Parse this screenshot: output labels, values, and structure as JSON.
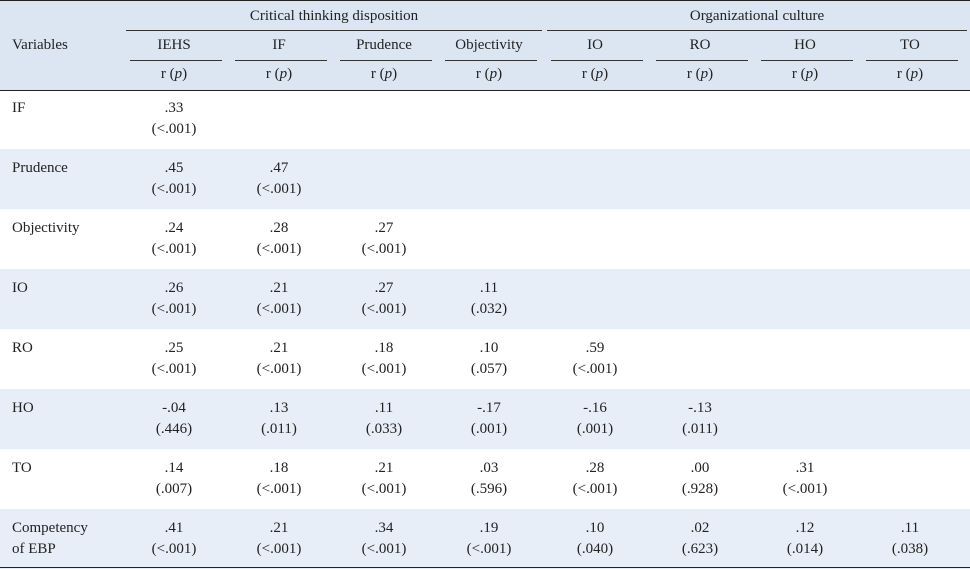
{
  "header": {
    "variables_label": "Variables",
    "group_ct": "Critical thinking disposition",
    "group_oc": "Organizational culture",
    "columns": [
      "IEHS",
      "IF",
      "Prudence",
      "Objectivity",
      "IO",
      "RO",
      "HO",
      "TO"
    ],
    "stat_r": "r (",
    "stat_p": "p",
    "stat_close": ")"
  },
  "rows": [
    {
      "label": "IF",
      "cells": [
        {
          "r": ".33",
          "p": "(<.001)"
        }
      ]
    },
    {
      "label": "Prudence",
      "cells": [
        {
          "r": ".45",
          "p": "(<.001)"
        },
        {
          "r": ".47",
          "p": "(<.001)"
        }
      ]
    },
    {
      "label": "Objectivity",
      "cells": [
        {
          "r": ".24",
          "p": "(<.001)"
        },
        {
          "r": ".28",
          "p": "(<.001)"
        },
        {
          "r": ".27",
          "p": "(<.001)"
        }
      ]
    },
    {
      "label": "IO",
      "cells": [
        {
          "r": ".26",
          "p": "(<.001)"
        },
        {
          "r": ".21",
          "p": "(<.001)"
        },
        {
          "r": ".27",
          "p": "(<.001)"
        },
        {
          "r": ".11",
          "p": "(.032)"
        }
      ]
    },
    {
      "label": "RO",
      "cells": [
        {
          "r": ".25",
          "p": "(<.001)"
        },
        {
          "r": ".21",
          "p": "(<.001)"
        },
        {
          "r": ".18",
          "p": "(<.001)"
        },
        {
          "r": ".10",
          "p": "(.057)"
        },
        {
          "r": ".59",
          "p": "(<.001)"
        }
      ]
    },
    {
      "label": "HO",
      "cells": [
        {
          "r": "-.04",
          "p": "(.446)"
        },
        {
          "r": ".13",
          "p": "(.011)"
        },
        {
          "r": ".11",
          "p": "(.033)"
        },
        {
          "r": "-.17",
          "p": "(.001)"
        },
        {
          "r": "-.16",
          "p": "(.001)"
        },
        {
          "r": "-.13",
          "p": "(.011)"
        }
      ]
    },
    {
      "label": "TO",
      "cells": [
        {
          "r": ".14",
          "p": "(.007)"
        },
        {
          "r": ".18",
          "p": "(<.001)"
        },
        {
          "r": ".21",
          "p": "(<.001)"
        },
        {
          "r": ".03",
          "p": "(.596)"
        },
        {
          "r": ".28",
          "p": "(<.001)"
        },
        {
          "r": ".00",
          "p": "(.928)"
        },
        {
          "r": ".31",
          "p": "(<.001)"
        }
      ]
    },
    {
      "label": "Competency\n of EBP",
      "cells": [
        {
          "r": ".41",
          "p": "(<.001)"
        },
        {
          "r": ".21",
          "p": "(<.001)"
        },
        {
          "r": ".34",
          "p": "(<.001)"
        },
        {
          "r": ".19",
          "p": "(<.001)"
        },
        {
          "r": ".10",
          "p": "(.040)"
        },
        {
          "r": ".02",
          "p": "(.623)"
        },
        {
          "r": ".12",
          "p": "(.014)"
        },
        {
          "r": ".11",
          "p": "(.038)"
        }
      ]
    }
  ]
}
